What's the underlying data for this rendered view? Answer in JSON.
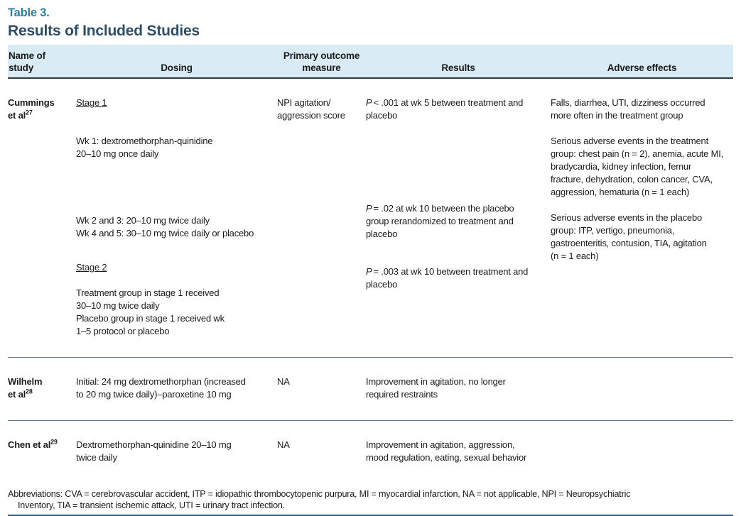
{
  "page": {
    "eyebrow": "Table 3.",
    "title": "Results of Included Studies"
  },
  "header": {
    "study": "Name of\nstudy",
    "dosing": "Dosing",
    "outcome": "Primary outcome\nmeasure",
    "results": "Results",
    "adverse": "Adverse effects"
  },
  "rows": {
    "cummings": {
      "name": "Cummings\net al",
      "ref": "27",
      "dosing": {
        "stage1_label": "Stage 1",
        "wk1": "Wk 1: dextromethorphan-quinidine\n20–10 mg once daily",
        "wk2to5": "Wk 2 and 3: 20–10 mg twice daily\nWk 4 and 5: 30–10 mg twice daily or placebo",
        "stage2_label": "Stage 2",
        "stage2_detail": "Treatment group in stage 1 received\n30–10 mg twice daily\nPlacebo group in stage 1 received wk\n1–5 protocol or placebo"
      },
      "outcome": "NPI agitation/\naggression score",
      "results": {
        "p1_sym": "P",
        "p1_text": "< .001 at wk 5 between treatment and\nplacebo",
        "p2_sym": "P",
        "p2_text": "= .02 at wk 10 between the placebo\ngroup rerandomized to treatment and\nplacebo",
        "p3_sym": "P",
        "p3_text": "= .003 at wk 10 between treatment and\nplacebo"
      },
      "adverse": {
        "a1": "Falls, diarrhea, UTI, dizziness occurred\nmore often in the treatment group",
        "a2": "Serious adverse events in the treatment\ngroup: chest pain (n = 2), anemia, acute MI,\nbradycardia, kidney infection, femur\nfracture, dehydration, colon cancer, CVA,\naggression, hematuria (n = 1 each)",
        "a3": "Serious adverse events in the placebo\ngroup: ITP, vertigo, pneumonia,\ngastroenteritis, contusion, TIA, agitation\n(n = 1 each)"
      }
    },
    "wilhelm": {
      "name": "Wilhelm\net al",
      "ref": "28",
      "dosing": "Initial: 24 mg dextromethorphan (increased\nto 20 mg twice daily)–paroxetine 10 mg",
      "outcome": "NA",
      "results": "Improvement in agitation, no longer\nrequired restraints",
      "adverse": ""
    },
    "chen": {
      "name": "Chen et al",
      "ref": "29",
      "dosing": "Dextromethorphan-quinidine 20–10 mg\ntwice daily",
      "outcome": "NA",
      "results": "Improvement in agitation, aggression,\nmood regulation, eating, sexual behavior",
      "adverse": ""
    }
  },
  "footnote": "Abbreviations: CVA = cerebrovascular accident, ITP = idiopathic thrombocytopenic purpura, MI = myocardial infarction, NA = not applicable, NPI = Neuropsychiatric\nInventory, TIA = transient ischemic attack, UTI = urinary tract infection.",
  "colors": {
    "eyebrow": "#2e7fa6",
    "title": "#2c4e66",
    "header_bg": "#d9ecf5",
    "bottom_rule": "#2e5f8a"
  }
}
